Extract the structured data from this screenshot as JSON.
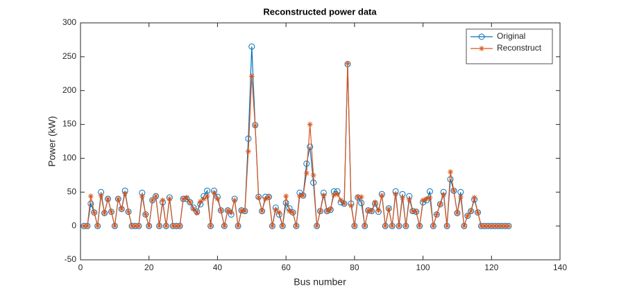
{
  "chart_data": {
    "type": "line",
    "title": "Reconstructed power data",
    "x_label": "Bus number",
    "y_label": "Power (kW)",
    "x": [
      1,
      2,
      3,
      4,
      5,
      6,
      7,
      8,
      9,
      10,
      11,
      12,
      13,
      14,
      15,
      16,
      17,
      18,
      19,
      20,
      21,
      22,
      23,
      24,
      25,
      26,
      27,
      28,
      29,
      30,
      31,
      32,
      33,
      34,
      35,
      36,
      37,
      38,
      39,
      40,
      41,
      42,
      43,
      44,
      45,
      46,
      47,
      48,
      49,
      50,
      51,
      52,
      53,
      54,
      55,
      56,
      57,
      58,
      59,
      60,
      61,
      62,
      63,
      64,
      65,
      66,
      67,
      68,
      69,
      70,
      71,
      72,
      73,
      74,
      75,
      76,
      77,
      78,
      79,
      80,
      81,
      82,
      83,
      84,
      85,
      86,
      87,
      88,
      89,
      90,
      91,
      92,
      93,
      94,
      95,
      96,
      97,
      98,
      99,
      100,
      101,
      102,
      103,
      104,
      105,
      106,
      107,
      108,
      109,
      110,
      111,
      112,
      113,
      114,
      115,
      116,
      117,
      118,
      119,
      120,
      121,
      122,
      123,
      124,
      125
    ],
    "series": [
      {
        "name": "Original",
        "color": "#0072BD",
        "marker": "circle",
        "values": [
          0,
          0,
          33,
          20,
          0,
          50,
          19,
          40,
          21,
          0,
          40,
          25,
          52,
          21,
          0,
          0,
          0,
          49,
          17,
          0,
          38,
          44,
          0,
          35,
          0,
          42,
          0,
          0,
          0,
          40,
          40,
          35,
          27,
          21,
          32,
          44,
          52,
          0,
          52,
          43,
          23,
          0,
          23,
          17,
          40,
          0,
          23,
          22,
          129,
          265,
          149,
          43,
          22,
          43,
          43,
          0,
          27,
          17,
          0,
          34,
          26,
          20,
          0,
          49,
          45,
          92,
          117,
          64,
          0,
          22,
          49,
          22,
          24,
          51,
          51,
          35,
          33,
          239,
          33,
          0,
          42,
          34,
          0,
          23,
          22,
          33,
          21,
          47,
          0,
          26,
          0,
          51,
          0,
          47,
          0,
          44,
          22,
          21,
          0,
          35,
          38,
          51,
          0,
          17,
          32,
          50,
          0,
          69,
          52,
          19,
          50,
          0,
          15,
          22,
          39,
          20,
          0,
          0,
          0,
          0,
          0,
          0,
          0,
          0,
          0
        ]
      },
      {
        "name": "Reconstruct",
        "color": "#D95319",
        "marker": "asterisk",
        "values": [
          0,
          0,
          44,
          20,
          0,
          45,
          19,
          40,
          21,
          0,
          40,
          25,
          48,
          21,
          0,
          0,
          0,
          44,
          17,
          0,
          38,
          44,
          0,
          38,
          0,
          40,
          0,
          0,
          0,
          40,
          42,
          35,
          25,
          19,
          36,
          40,
          44,
          0,
          49,
          40,
          23,
          0,
          23,
          20,
          38,
          0,
          23,
          22,
          110,
          221,
          148,
          42,
          22,
          40,
          43,
          0,
          24,
          20,
          0,
          44,
          22,
          20,
          0,
          44,
          45,
          78,
          150,
          75,
          0,
          22,
          45,
          22,
          25,
          46,
          47,
          38,
          33,
          240,
          30,
          0,
          43,
          43,
          0,
          23,
          22,
          35,
          23,
          45,
          0,
          25,
          0,
          47,
          0,
          42,
          0,
          39,
          22,
          21,
          0,
          38,
          40,
          42,
          0,
          17,
          32,
          46,
          0,
          80,
          52,
          19,
          43,
          0,
          15,
          22,
          42,
          20,
          0,
          0,
          0,
          0,
          0,
          0,
          0,
          0,
          0
        ]
      }
    ],
    "xlim": [
      0,
      140
    ],
    "xticks": [
      0,
      20,
      40,
      60,
      80,
      100,
      120,
      140
    ],
    "ylim": [
      -50,
      300
    ],
    "yticks": [
      -50,
      0,
      50,
      100,
      150,
      200,
      250,
      300
    ],
    "legend": "upper right"
  }
}
